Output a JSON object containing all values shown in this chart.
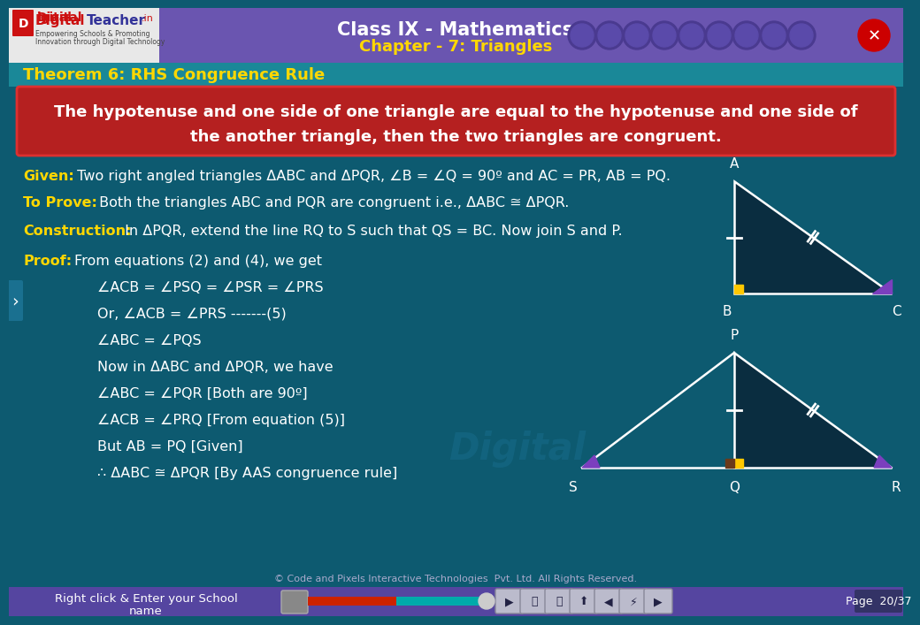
{
  "title": "Class IX - Mathematics",
  "subtitle": "Chapter - 7: Triangles",
  "theorem_title": "Theorem 6: RHS Congruence Rule",
  "theorem_line1": "The hypotenuse and one side of one triangle are equal to the hypotenuse and one side of",
  "theorem_line2": "the another triangle, then the two triangles are congruent.",
  "given_label": "Given:",
  "given_text": " Two right angled triangles ΔABC and ΔPQR, ∠B = ∠Q = 90º and AC = PR, AB = PQ.",
  "toprove_label": "To Prove:",
  "toprove_text": " Both the triangles ABC and PQR are congruent i.e., ΔABC ≅ ΔPQR.",
  "construction_label": "Construction:",
  "construction_text": " In ΔPQR, extend the line RQ to S such that QS = BC. Now join S and P.",
  "proof_label": "Proof:",
  "proof_text": "From equations (2) and (4), we get",
  "proof_lines": [
    "∠ACB = ∠PSQ = ∠PSR = ∠PRS",
    "Or, ∠ACB = ∠PRS -------(5)",
    "∠ABC = ∠PQS",
    "Now in ΔABC and ΔPQR, we have",
    "∠ABC = ∠PQR [Both are 90º]",
    "∠ACB = ∠PRQ [From equation (5)]",
    "But AB = PQ [Given]",
    "∴ ΔABC ≅ ΔPQR [By AAS congruence rule]"
  ],
  "bg_color": "#0d5a70",
  "header_bg": "#7060b8",
  "teal_bar_bg": "#1a8090",
  "theorem_box_bg": "#b52020",
  "text_color": "#ffffff",
  "yellow_color": "#ffd700",
  "triangle_fill": "#0a2d40",
  "triangle_stroke": "#ffffff",
  "right_angle_color": "#ffc800",
  "angle_color": "#7b3fbe",
  "footer_text": "© Code and Pixels Interactive Technologies  Pvt. Ltd. All Rights Reserved.",
  "footer_bar_text": "Right click & Enter your School\nname",
  "page_text": "Page  20/37"
}
